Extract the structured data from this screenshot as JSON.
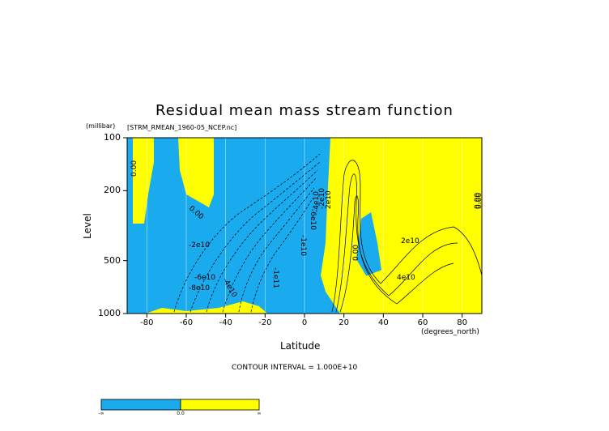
{
  "chart_data": {
    "type": "heatmap",
    "title": "Residual mean mass stream function",
    "source": "[STRM_RMEAN_1960-05_NCEP.nc]",
    "ylabel": "Level",
    "yunit": "(millibar)",
    "xlabel": "Latitude",
    "xunit": "(degrees_north)",
    "xlim": [
      -90,
      90
    ],
    "ylim": [
      1000,
      100
    ],
    "yscale": "log",
    "xticks": [
      "-80",
      "-60",
      "-40",
      "-20",
      "0",
      "20",
      "40",
      "60",
      "80"
    ],
    "xtick_values": [
      -80,
      -60,
      -40,
      -20,
      0,
      20,
      40,
      60,
      80
    ],
    "yticks": [
      "100",
      "200",
      "500",
      "1000"
    ],
    "ytick_values": [
      100,
      200,
      500,
      1000
    ],
    "contour_interval": "CONTOUR INTERVAL = 1.000E+10",
    "contour_labels": [
      "0.00",
      "0.00",
      "0.00",
      "0.00",
      "-2e10",
      "-4e10",
      "-6e10",
      "-8e10",
      "-1e11",
      "-1e10",
      "-6e10",
      "-4e10",
      "-2e10",
      "2e10",
      "2e10",
      "4e10",
      "0.00"
    ],
    "colors": {
      "negative": "#1aaaee",
      "positive": "#ffff00",
      "gridline": "#ffffff"
    },
    "colorbar": {
      "labels": [
        "-∞",
        "0.0",
        "∞"
      ],
      "colors": [
        "#1aaaee",
        "#ffff00"
      ]
    }
  }
}
